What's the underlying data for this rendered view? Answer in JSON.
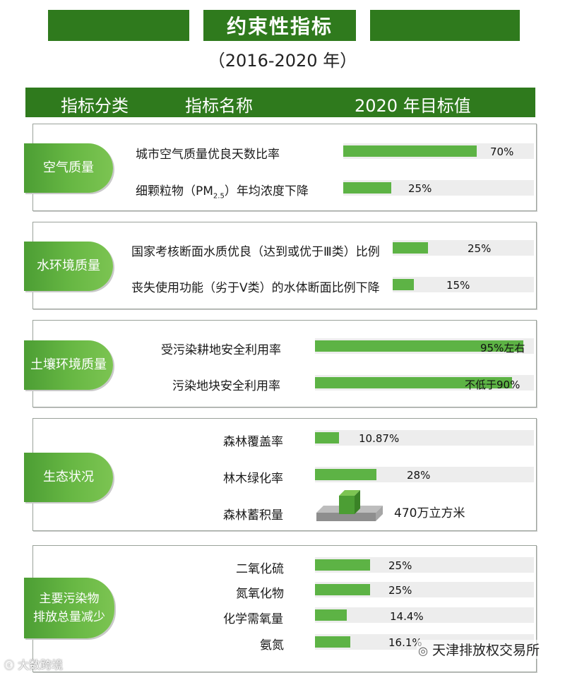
{
  "title": "约束性指标",
  "subtitle": "（2016-2020 年）",
  "header": {
    "col1": "指标分类",
    "col2": "指标名称",
    "col3": "2020 年目标值"
  },
  "watermark_left": "大数跨境",
  "watermark_right": "天津排放权交易所",
  "colors": {
    "dark_green": "#2f7a1d",
    "bar_green": "#5db345",
    "track": "#ededed"
  },
  "chart_data": {
    "type": "bar",
    "orientation": "horizontal",
    "groups": [
      {
        "category": "空气质量",
        "items": [
          {
            "name": "城市空气质量优良天数比率",
            "value": 70,
            "label": "70%"
          },
          {
            "name_main": "细颗粒物（PM",
            "name_sub": "2.5",
            "name_tail": "）年均浓度下降",
            "value": 25,
            "label": "25%"
          }
        ]
      },
      {
        "category": "水环境质量",
        "items": [
          {
            "name": "国家考核断面水质优良（达到或优于Ⅲ类）比例",
            "value": 25,
            "label": "25%"
          },
          {
            "name": "丧失使用功能（劣于Ⅴ类）的水体断面比例下降",
            "value": 15,
            "label": "15%"
          }
        ]
      },
      {
        "category": "土壤环境质量",
        "items": [
          {
            "name": "受污染耕地安全利用率",
            "value": 95,
            "label": "95%左右"
          },
          {
            "name": "污染地块安全利用率",
            "value": 90,
            "label": "不低于90%"
          }
        ]
      },
      {
        "category": "生态状况",
        "items": [
          {
            "name": "森林覆盖率",
            "value": 10.87,
            "label": "10.87%"
          },
          {
            "name": "林木绿化率",
            "value": 28,
            "label": "28%"
          },
          {
            "name": "森林蓄积量",
            "value": 470,
            "label": "470万立方米",
            "mark": "3d-block"
          }
        ]
      },
      {
        "category_lines": [
          "主要污染物",
          "排放总量减少"
        ],
        "items": [
          {
            "name": "二氧化硫",
            "value": 25,
            "label": "25%"
          },
          {
            "name": "氮氧化物",
            "value": 25,
            "label": "25%"
          },
          {
            "name": "化学需氧量",
            "value": 14.4,
            "label": "14.4%"
          },
          {
            "name": "氨氮",
            "value": 16.1,
            "label": "16.1%"
          }
        ]
      }
    ]
  }
}
